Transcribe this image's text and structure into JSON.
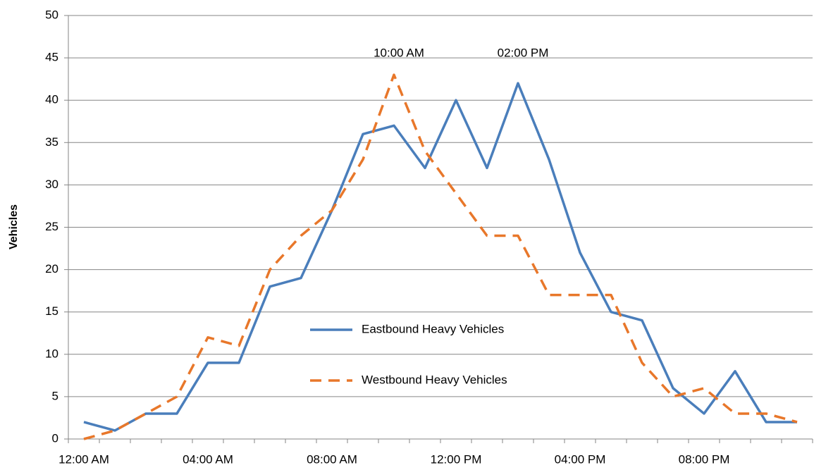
{
  "chart_data": {
    "type": "line",
    "y_label": "Vehicles",
    "categories": [
      "12:00 AM",
      null,
      null,
      null,
      "04:00 AM",
      null,
      null,
      null,
      "08:00 AM",
      null,
      null,
      null,
      "12:00 PM",
      null,
      null,
      null,
      "04:00 PM",
      null,
      null,
      null,
      "08:00 PM",
      null,
      null,
      null
    ],
    "series": [
      {
        "name": "Eastbound Heavy Vehicles",
        "color": "#4a7ebb",
        "dash": false,
        "values": [
          2,
          1,
          3,
          3,
          9,
          9,
          18,
          19,
          27,
          36,
          37,
          32,
          40,
          32,
          42,
          33,
          22,
          15,
          14,
          6,
          3,
          8,
          2,
          2
        ]
      },
      {
        "name": "Westbound Heavy Vehicles",
        "color": "#e8772a",
        "dash": true,
        "values": [
          0,
          1,
          3,
          5,
          12,
          11,
          20,
          24,
          27,
          33,
          43,
          34,
          29,
          24,
          24,
          17,
          17,
          17,
          9,
          5,
          6,
          3,
          3,
          2
        ]
      }
    ],
    "annotations": [
      "10:00 AM",
      "02:00 PM"
    ],
    "ylim": [
      0,
      50
    ],
    "yticks": [
      0,
      5,
      10,
      15,
      20,
      25,
      30,
      35,
      40,
      45,
      50
    ],
    "grid": true
  }
}
